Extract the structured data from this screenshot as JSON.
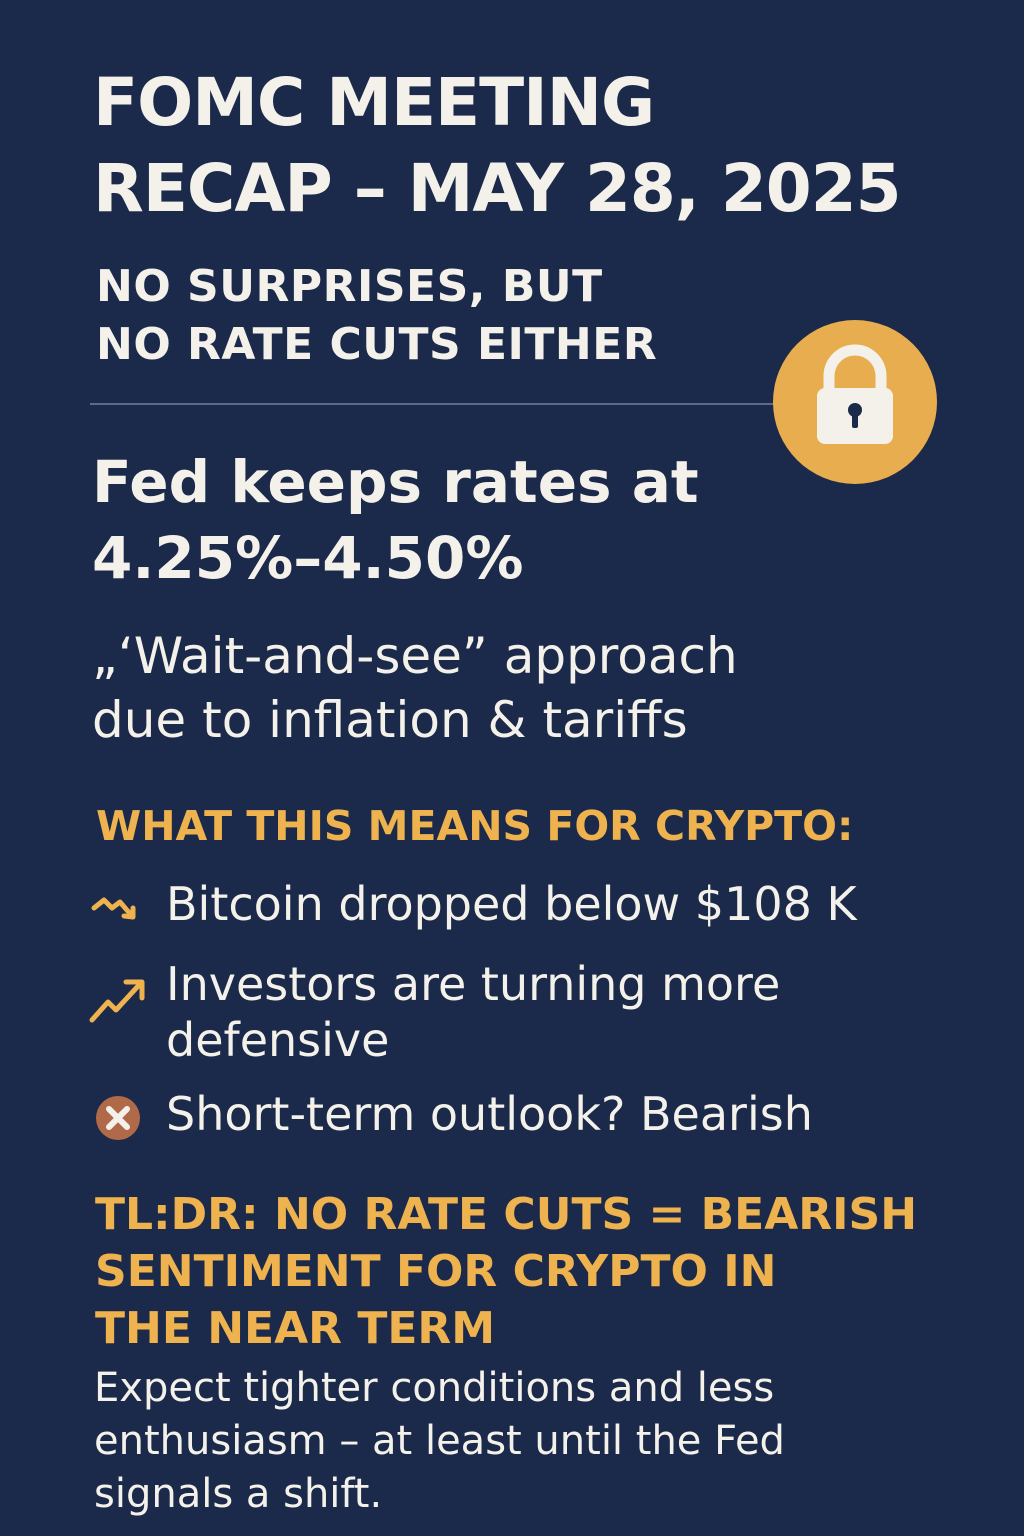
{
  "title": {
    "line1": "FOMC MEETING",
    "line2": "RECAP – MAY 28, 2025"
  },
  "subtitle": {
    "line1": "NO SURPRISES, BUT",
    "line2": "NO RATE CUTS EITHER"
  },
  "badge": {
    "icon": "lock-icon",
    "color": "#e8ad4f"
  },
  "headline": {
    "line1": "Fed keeps rates at",
    "line2": "4.25%–4.50%"
  },
  "approach": {
    "line1": "„‘Wait-and-see” approach",
    "line2": "due to inflation & tariffs"
  },
  "crypto": {
    "heading": "WHAT THIS MEANS FOR CRYPTO:",
    "items": [
      {
        "icon": "trend-down-icon",
        "line1": "Bitcoin dropped below $108 K",
        "line2": ""
      },
      {
        "icon": "trend-up-icon",
        "line1": "Investors are turning more",
        "line2": "defensive"
      },
      {
        "icon": "x-circle-icon",
        "line1": "Short-term outlook? Bearish",
        "line2": ""
      }
    ]
  },
  "tldr": {
    "line1": "TL:DR: NO RATE CUTS = BEARISH",
    "line2": "SENTIMENT FOR CRYPTO IN",
    "line3": "THE NEAR TERM"
  },
  "closing": {
    "line1": "Expect tighter conditions and less",
    "line2": "enthusiasm – at least until the Fed",
    "line3": "signals a shift."
  },
  "colors": {
    "background": "#1b2a4a",
    "accent": "#eeb24e",
    "text": "#f4f1ea",
    "x_badge": "#b06a4a"
  }
}
